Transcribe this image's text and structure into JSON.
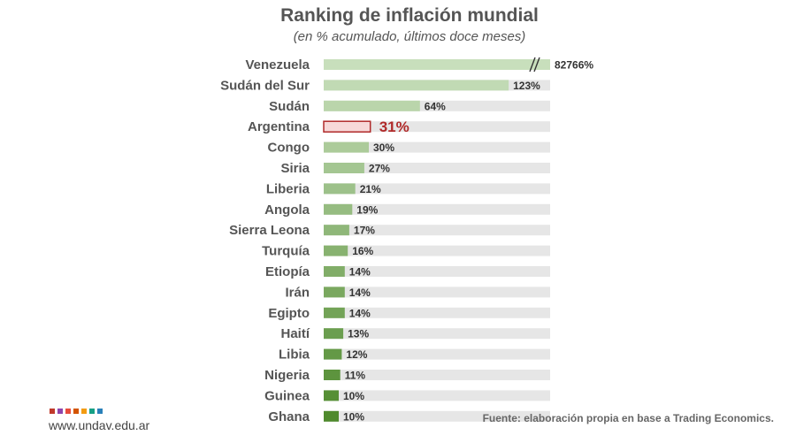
{
  "chart_data": {
    "type": "bar",
    "orientation": "horizontal",
    "title": "Ranking de inflación mundial",
    "subtitle": "(en % acumulado, últimos doce meses)",
    "categories": [
      "Venezuela",
      "Sudán del Sur",
      "Sudán",
      "Argentina",
      "Congo",
      "Siria",
      "Liberia",
      "Angola",
      "Sierra Leona",
      "Turquía",
      "Etiopía",
      "Irán",
      "Egipto",
      "Haití",
      "Libia",
      "Nigeria",
      "Guinea",
      "Ghana"
    ],
    "values": [
      82766,
      123,
      64,
      31,
      30,
      27,
      21,
      19,
      17,
      16,
      14,
      14,
      14,
      13,
      12,
      11,
      10,
      10
    ],
    "value_labels": [
      "82766%",
      "123%",
      "64%",
      "31%",
      "30%",
      "27%",
      "21%",
      "19%",
      "17%",
      "16%",
      "14%",
      "14%",
      "14%",
      "13%",
      "12%",
      "11%",
      "10%",
      "10%"
    ],
    "highlight_category": "Argentina",
    "axis_break_category": "Venezuela",
    "colors": {
      "light": "#c8dfbc",
      "dark": "#4f8a2d",
      "highlight_fill": "#f7d8d8",
      "highlight_stroke": "#b02a2a",
      "track": "#e6e6e6"
    },
    "source": "Fuente: elaboración propia en base a Trading Economics.",
    "website": "www.undav.edu.ar",
    "logo_dot_colors": [
      "#c0392b",
      "#8e44ad",
      "#e74c3c",
      "#d35400",
      "#f39c12",
      "#16a085",
      "#2980b9"
    ]
  }
}
